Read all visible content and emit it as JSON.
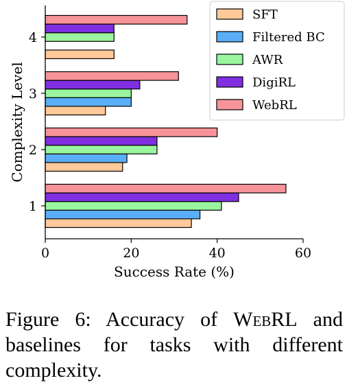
{
  "chart_data": {
    "type": "bar",
    "orientation": "horizontal",
    "xlabel": "Success Rate (%)",
    "ylabel": "Complexity Level",
    "xlim": [
      0,
      60
    ],
    "xticks": [
      "0",
      "20",
      "40",
      "60"
    ],
    "categories": [
      "1",
      "2",
      "3",
      "4"
    ],
    "grid": false,
    "legend_position": "top-right",
    "series": [
      {
        "name": "SFT",
        "color": "#FFC999",
        "values": [
          34,
          18,
          14,
          16
        ]
      },
      {
        "name": "Filtered BC",
        "color": "#5AAEF7",
        "values": [
          36,
          19,
          20,
          0
        ]
      },
      {
        "name": "AWR",
        "color": "#99F59E",
        "values": [
          41,
          26,
          20,
          16
        ]
      },
      {
        "name": "DigiRL",
        "color": "#7F2FE0",
        "values": [
          45,
          26,
          22,
          16
        ]
      },
      {
        "name": "WebRL",
        "color": "#F6949A",
        "values": [
          56,
          40,
          31,
          33
        ]
      }
    ]
  },
  "caption": {
    "prefix": "Figure 6:  Accuracy of ",
    "name": "WebRL",
    "suffix": " and baselines for tasks with different complexity."
  }
}
